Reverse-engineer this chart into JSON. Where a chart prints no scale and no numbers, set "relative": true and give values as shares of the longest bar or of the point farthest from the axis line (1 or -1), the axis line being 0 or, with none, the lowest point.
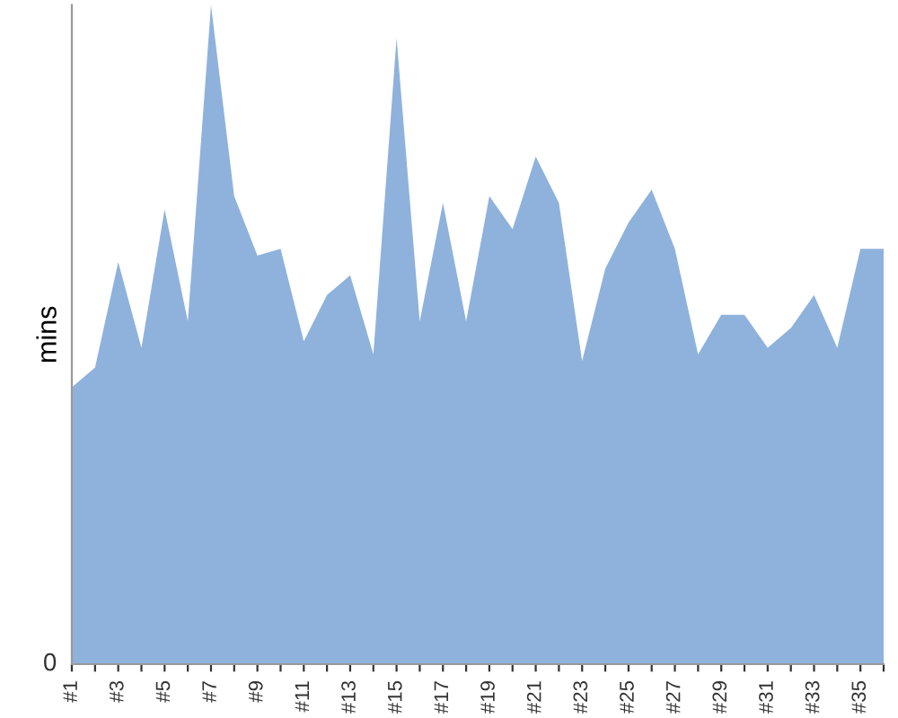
{
  "chart_data": {
    "type": "area",
    "ylabel": "mins",
    "relative": true,
    "color": "#8fb2dc",
    "annotations": [
      "0"
    ],
    "categories": [
      "#1",
      null,
      "#3",
      null,
      "#5",
      null,
      "#7",
      null,
      "#9",
      null,
      "#11",
      null,
      "#13",
      null,
      "#15",
      null,
      "#17",
      null,
      "#19",
      null,
      "#21",
      null,
      "#23",
      null,
      "#25",
      null,
      "#27",
      null,
      "#29",
      null,
      "#31",
      null,
      "#33",
      null,
      "#35",
      null
    ],
    "values": [
      0.42,
      0.45,
      0.61,
      0.48,
      0.69,
      0.52,
      1,
      0.71,
      0.62,
      0.63,
      0.49,
      0.56,
      0.59,
      0.47,
      0.95,
      0.52,
      0.7,
      0.52,
      0.71,
      0.66,
      0.77,
      0.7,
      0.46,
      0.6,
      0.67,
      0.72,
      0.63,
      0.47,
      0.53,
      0.53,
      0.48,
      0.51,
      0.56,
      0.48,
      0.63,
      0.63
    ]
  }
}
